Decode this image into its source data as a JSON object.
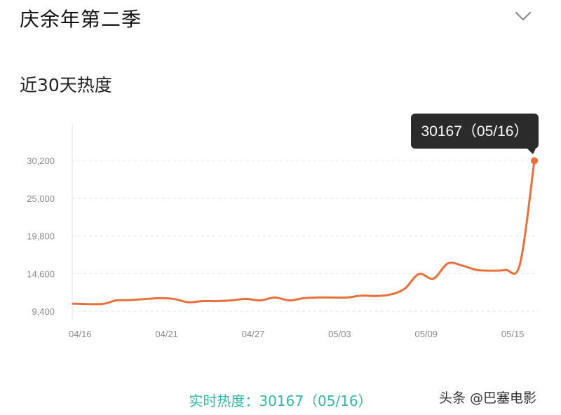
{
  "header": {
    "show_title": "庆余年第二季",
    "expand_icon": "chevron-down-icon"
  },
  "chart_data": {
    "type": "line",
    "title": "近30天热度",
    "x_ticks": [
      "04/16",
      "04/21",
      "04/27",
      "05/03",
      "05/09",
      "05/15"
    ],
    "y_ticks": [
      "9,400",
      "14,600",
      "19,800",
      "25,000",
      "30,200"
    ],
    "ylim": [
      9400,
      30200
    ],
    "xlim": [
      0,
      31
    ],
    "grid": true,
    "series": [
      {
        "color": "#e8703a",
        "points": [
          [
            0,
            10450
          ],
          [
            2,
            10400
          ],
          [
            3,
            10900
          ],
          [
            4,
            10950
          ],
          [
            6,
            11200
          ],
          [
            7,
            11100
          ],
          [
            8,
            10650
          ],
          [
            9,
            10800
          ],
          [
            10,
            10800
          ],
          [
            11,
            10900
          ],
          [
            12,
            11100
          ],
          [
            13,
            10900
          ],
          [
            14,
            11300
          ],
          [
            15,
            10900
          ],
          [
            16,
            11200
          ],
          [
            17,
            11300
          ],
          [
            18,
            11300
          ],
          [
            19,
            11300
          ],
          [
            20,
            11550
          ],
          [
            21,
            11500
          ],
          [
            22,
            11700
          ],
          [
            23,
            12500
          ],
          [
            24,
            14550
          ],
          [
            25,
            13900
          ],
          [
            26,
            16000
          ],
          [
            27,
            15700
          ],
          [
            28,
            15100
          ],
          [
            29,
            15000
          ],
          [
            30,
            15100
          ],
          [
            31,
            15900
          ],
          [
            32,
            30167
          ]
        ]
      }
    ],
    "highlight": {
      "x": 32,
      "y": 30167,
      "label": "30167（05/16）"
    }
  },
  "footer": {
    "realtime_label": "实时热度：30167（05/16）"
  },
  "watermark": "头条 @巴塞电影"
}
